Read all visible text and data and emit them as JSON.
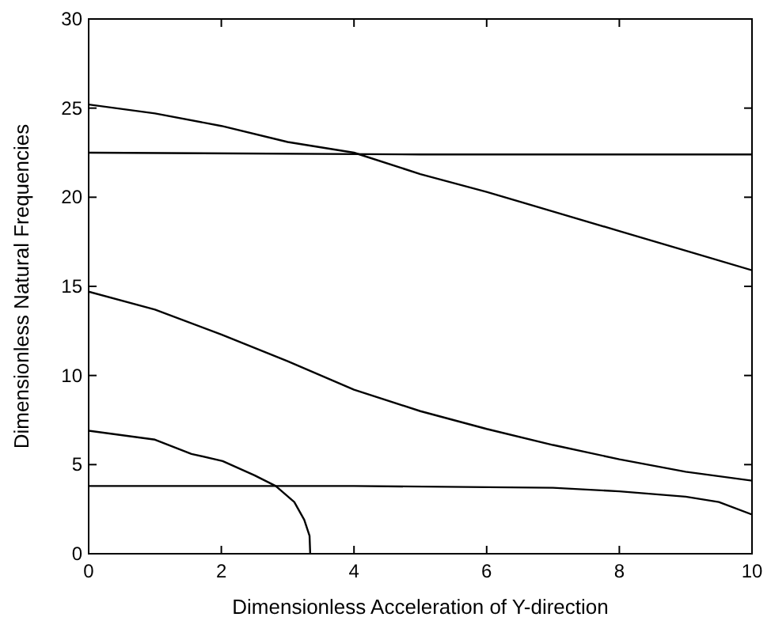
{
  "chart_data": {
    "type": "line",
    "xlabel": "Dimensionless Acceleration of Y-direction",
    "ylabel": "Dimensionless Natural Frequencies",
    "xlim": [
      0,
      10
    ],
    "ylim": [
      0,
      30
    ],
    "xticks": [
      0,
      2,
      4,
      6,
      8,
      10
    ],
    "yticks": [
      0,
      5,
      10,
      15,
      20,
      25,
      30
    ],
    "grid": false,
    "marker": "none",
    "line_style": "solid",
    "series": [
      {
        "color": "#000000",
        "x": [
          0,
          1,
          2,
          3,
          4,
          5,
          6,
          7,
          8,
          9,
          10
        ],
        "values": [
          25.2,
          24.7,
          24.0,
          23.1,
          22.5,
          21.3,
          20.3,
          19.2,
          18.1,
          17.0,
          15.9
        ]
      },
      {
        "color": "#000000",
        "x": [
          0,
          5,
          10
        ],
        "values": [
          22.5,
          22.4,
          22.4
        ]
      },
      {
        "color": "#000000",
        "x": [
          0,
          1,
          2,
          3,
          4,
          5,
          6,
          7,
          8,
          9,
          10
        ],
        "values": [
          14.7,
          13.7,
          12.3,
          10.8,
          9.2,
          8.0,
          7.0,
          6.1,
          5.3,
          4.6,
          4.1
        ]
      },
      {
        "color": "#000000",
        "x": [
          0,
          1,
          1.55,
          2.02,
          2.5,
          2.82,
          3.1,
          3.25,
          3.33,
          3.34
        ],
        "values": [
          6.9,
          6.4,
          5.6,
          5.2,
          4.4,
          3.8,
          2.9,
          1.9,
          1.0,
          0
        ]
      },
      {
        "color": "#000000",
        "x": [
          0,
          4,
          7,
          8,
          9,
          9.5,
          10
        ],
        "values": [
          3.8,
          3.8,
          3.7,
          3.5,
          3.2,
          2.9,
          2.2
        ]
      }
    ]
  }
}
